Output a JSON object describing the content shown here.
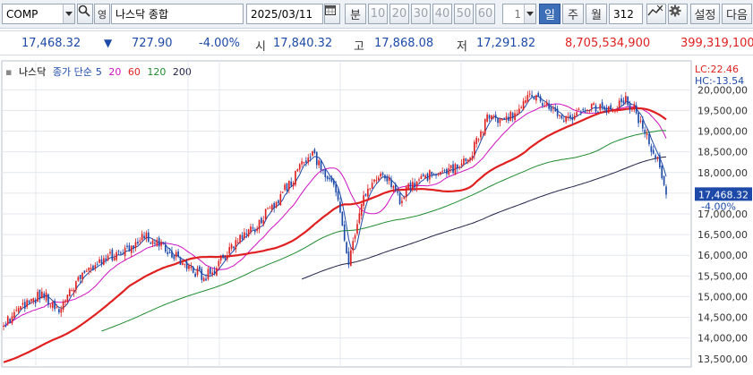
{
  "toolbar": {
    "code": "COMP",
    "name_mark": "영",
    "name": "나스닥 종합",
    "date": "2025/03/11",
    "period_min": "분",
    "periods": [
      "10",
      "20",
      "30",
      "40",
      "50",
      "60"
    ],
    "count_select": "1",
    "day": "일",
    "week": "주",
    "month": "월",
    "bar_count": "312",
    "settings": "설정",
    "next": "다음"
  },
  "quote": {
    "price": "17,468.32",
    "change_arrow": "▼",
    "change": "727.90",
    "change_pct": "-4.00%",
    "open_label": "시",
    "open": "17,840.32",
    "high_label": "고",
    "high": "17,868.08",
    "low_label": "저",
    "low": "17,291.82",
    "volume": "8,705,534,900",
    "amount": "399,319,100"
  },
  "legend": {
    "name": "나스닥",
    "kind": "종가 단순",
    "ma": [
      "5",
      "20",
      "60",
      "120",
      "200"
    ]
  },
  "colors": {
    "up": "#e02020",
    "down": "#1d4aa8",
    "ma5": "#1d4aa8",
    "ma20": "#d010c0",
    "ma60": "#e02020",
    "ma120": "#1e8a2e",
    "ma200": "#22224a"
  },
  "chart_data": {
    "type": "line",
    "title": "",
    "xlabel": "",
    "ylabel": "",
    "ylim": [
      13300,
      20700
    ],
    "yticks": [
      13500,
      14000,
      14500,
      15000,
      15500,
      16000,
      16500,
      17000,
      17500,
      18000,
      18500,
      19000,
      19500,
      20000
    ],
    "ytick_labels": [
      "13,500,00",
      "14,000,00",
      "14,500,00",
      "15,000,00",
      "15,500,00",
      "16,000,00",
      "16,500,00",
      "17,000,00",
      "17,500,00",
      "18,000,00",
      "18,500,00",
      "19,000,00",
      "19,500,00",
      "20,000,00"
    ],
    "last_price": 17468.32,
    "last_price_label": "17,468.32",
    "last_change_label": "-4.00%",
    "lc_label": "LC:22.46",
    "hc_label": "HC:-13.54",
    "grid": true,
    "n_bars": 312,
    "price_anchors": [
      [
        0,
        14300
      ],
      [
        12,
        14850
      ],
      [
        22,
        15050
      ],
      [
        30,
        14700
      ],
      [
        42,
        15400
      ],
      [
        55,
        15900
      ],
      [
        68,
        16150
      ],
      [
        78,
        16450
      ],
      [
        92,
        16100
      ],
      [
        100,
        15800
      ],
      [
        110,
        15450
      ],
      [
        118,
        15750
      ],
      [
        128,
        16300
      ],
      [
        138,
        16650
      ],
      [
        150,
        17300
      ],
      [
        160,
        17900
      ],
      [
        170,
        18500
      ],
      [
        176,
        18050
      ],
      [
        182,
        17700
      ],
      [
        186,
        16950
      ],
      [
        190,
        15850
      ],
      [
        194,
        16600
      ],
      [
        198,
        17400
      ],
      [
        205,
        17900
      ],
      [
        212,
        17850
      ],
      [
        218,
        17300
      ],
      [
        224,
        17700
      ],
      [
        232,
        17900
      ],
      [
        240,
        18050
      ],
      [
        250,
        18100
      ],
      [
        258,
        18500
      ],
      [
        266,
        19300
      ],
      [
        274,
        19300
      ],
      [
        282,
        19400
      ],
      [
        290,
        19900
      ],
      [
        298,
        19700
      ],
      [
        306,
        19400
      ],
      [
        312,
        19300
      ],
      [
        318,
        19550
      ],
      [
        326,
        19600
      ],
      [
        334,
        19500
      ],
      [
        342,
        19800
      ],
      [
        348,
        19500
      ],
      [
        352,
        19100
      ],
      [
        356,
        18700
      ],
      [
        360,
        18300
      ],
      [
        363,
        17900
      ],
      [
        365,
        17468
      ]
    ],
    "series": [
      {
        "name": "5",
        "values": []
      },
      {
        "name": "20",
        "values": []
      },
      {
        "name": "60",
        "values": []
      },
      {
        "name": "120",
        "values": []
      },
      {
        "name": "200",
        "values": []
      }
    ]
  }
}
